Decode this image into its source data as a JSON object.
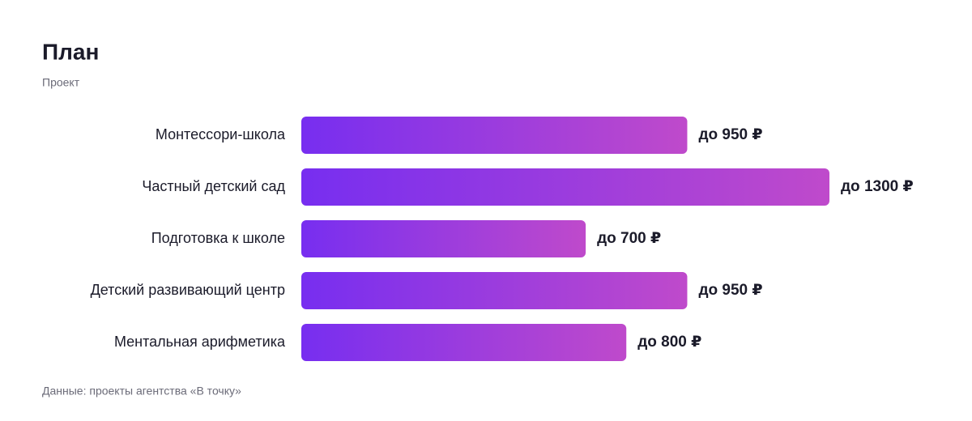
{
  "chart_data": {
    "type": "hbar",
    "title": "План",
    "subtitle": "Проект",
    "categories": [
      "Монтессори-школа",
      "Частный детский сад",
      "Подготовка к школе",
      "Детский развивающий центр",
      "Ментальная арифметика"
    ],
    "values": [
      950,
      1300,
      700,
      950,
      800
    ],
    "value_labels": [
      "до 950 ₽",
      "до 1300 ₽",
      "до 700 ₽",
      "до 950 ₽",
      "до 800 ₽"
    ],
    "gradient": [
      "#772ef0",
      "#bf4acb"
    ],
    "source": "Данные: проекты агентства «В точку»"
  }
}
